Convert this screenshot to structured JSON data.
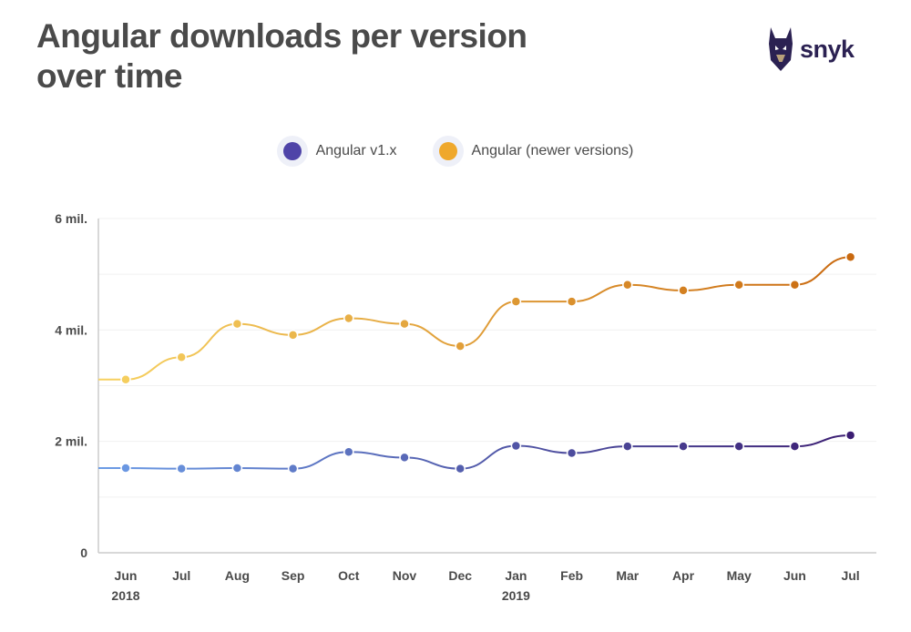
{
  "title_lines": [
    "Angular downloads per version",
    "over time"
  ],
  "logo": {
    "text": "snyk",
    "icon": "doberman-logo-icon"
  },
  "colors": {
    "v1_start": "#6c9ce6",
    "v1_end": "#3b1d72",
    "newer_start": "#f7d261",
    "newer_end": "#c9690f",
    "legend_v1": "#4f44a8",
    "legend_newer": "#efa82c",
    "axis": "#cccccc",
    "grid": "#f0f0f0",
    "text": "#4a4a4a"
  },
  "chart_data": {
    "type": "line",
    "title": "Angular downloads per version over time",
    "categories": [
      "Jun",
      "Jul",
      "Aug",
      "Sep",
      "Oct",
      "Nov",
      "Dec",
      "Jan",
      "Feb",
      "Mar",
      "Apr",
      "May",
      "Jun",
      "Jul"
    ],
    "year_labels": [
      "2018",
      "",
      "",
      "",
      "",
      "",
      "",
      "2019",
      "",
      "",
      "",
      "",
      "",
      ""
    ],
    "series": [
      {
        "name": "Angular v1.x",
        "values": [
          1.52,
          1.51,
          1.52,
          1.51,
          1.81,
          1.71,
          1.51,
          1.92,
          1.79,
          1.91,
          1.91,
          1.91,
          1.91,
          2.11
        ]
      },
      {
        "name": "Angular (newer versions)",
        "values": [
          3.11,
          3.51,
          4.11,
          3.91,
          4.21,
          4.11,
          3.71,
          4.51,
          4.51,
          4.81,
          4.71,
          4.81,
          4.81,
          5.31
        ]
      }
    ],
    "y_ticks": [
      0,
      2,
      4,
      6
    ],
    "y_tick_labels": [
      "0",
      "2 mil.",
      "4 mil.",
      "6 mil."
    ],
    "ylim": [
      0,
      6
    ],
    "xlabel": "",
    "ylabel": "",
    "grid": true,
    "legend": "top-center"
  }
}
